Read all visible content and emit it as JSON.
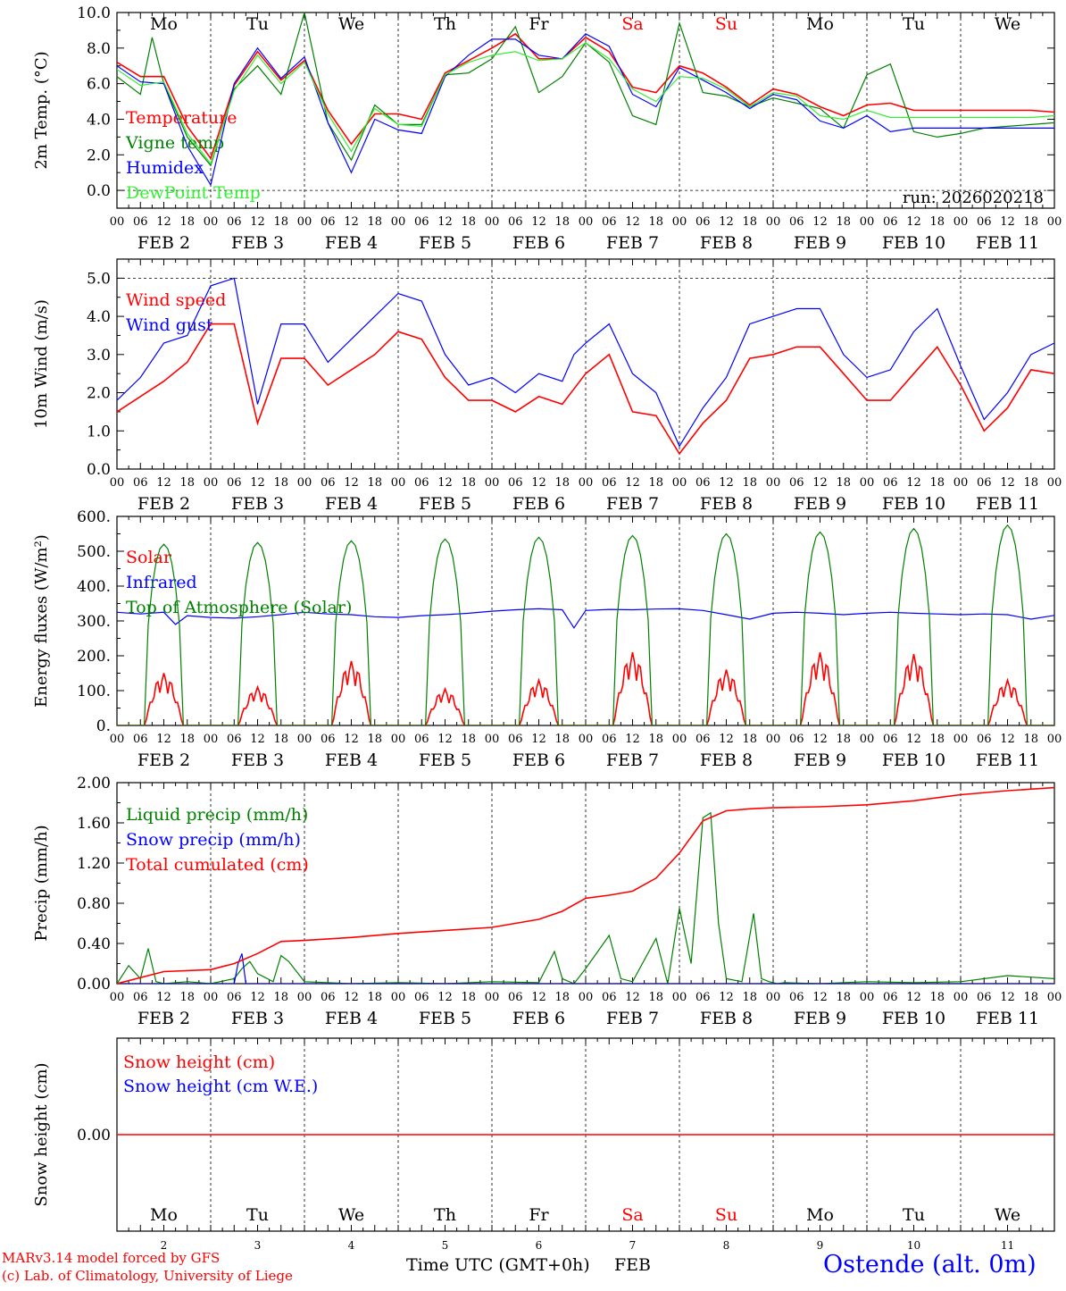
{
  "colors": {
    "red": "#ff0000",
    "green": "#008000",
    "blue": "#0000ff",
    "lightgreen": "#33ee33",
    "weekend": "#ff0000",
    "axis": "#000000",
    "grid": "#000000"
  },
  "days": [
    {
      "abbr": "Mo",
      "date": "FEB  2",
      "num": "2",
      "weekend": false
    },
    {
      "abbr": "Tu",
      "date": "FEB  3",
      "num": "3",
      "weekend": false
    },
    {
      "abbr": "We",
      "date": "FEB  4",
      "num": "4",
      "weekend": false
    },
    {
      "abbr": "Th",
      "date": "FEB  5",
      "num": "5",
      "weekend": false
    },
    {
      "abbr": "Fr",
      "date": "FEB  6",
      "num": "6",
      "weekend": false
    },
    {
      "abbr": "Sa",
      "date": "FEB  7",
      "num": "7",
      "weekend": true
    },
    {
      "abbr": "Su",
      "date": "FEB  8",
      "num": "8",
      "weekend": true
    },
    {
      "abbr": "Mo",
      "date": "FEB  9",
      "num": "9",
      "weekend": false
    },
    {
      "abbr": "Tu",
      "date": "FEB 10",
      "num": "10",
      "weekend": false
    },
    {
      "abbr": "We",
      "date": "FEB 11",
      "num": "11",
      "weekend": false
    }
  ],
  "hour_ticks": [
    "00",
    "06",
    "12",
    "18"
  ],
  "final_hour_tick": "00",
  "footer": {
    "model": "MARv3.14 model forced by GFS",
    "copyright": "(c) Lab. of Climatology, University of Liege",
    "xlabel": "Time UTC (GMT+0h)",
    "month": "FEB",
    "station": "Ostende (alt. 0m)"
  },
  "chart_data": [
    {
      "type": "line",
      "ylabel": "2m Temp. (°C)",
      "ylim": [
        -1.0,
        10.0
      ],
      "yticks": [
        "0.0",
        "2.0",
        "4.0",
        "6.0",
        "8.0",
        "10.0"
      ],
      "ytick_values": [
        0,
        2,
        4,
        6,
        8,
        10
      ],
      "dashed_y": [
        0,
        10
      ],
      "annotation": "run: 2026020218",
      "x_start": "2026-02-02 00 UTC",
      "x_end": "2026-02-12 00 UTC",
      "series": [
        {
          "name": "Temperature",
          "color": "red",
          "x": [
            0,
            6,
            12,
            18,
            24,
            30,
            36,
            42,
            48,
            54,
            60,
            66,
            72,
            78,
            84,
            90,
            96,
            102,
            108,
            114,
            120,
            126,
            132,
            138,
            144,
            150,
            156,
            162,
            168,
            174,
            180,
            186,
            192,
            198,
            204,
            210,
            216,
            222,
            228,
            234,
            240
          ],
          "y": [
            7.2,
            6.4,
            6.4,
            3.6,
            1.8,
            5.9,
            7.8,
            6.2,
            7.3,
            4.5,
            2.6,
            4.3,
            4.3,
            4.0,
            6.6,
            7.3,
            8.0,
            8.8,
            7.4,
            7.4,
            8.6,
            7.8,
            5.8,
            5.5,
            7.0,
            6.6,
            5.8,
            4.8,
            5.7,
            5.4,
            4.7,
            4.2,
            4.8,
            4.9,
            4.5,
            4.5,
            4.5,
            4.5,
            4.5,
            4.5,
            4.4
          ]
        },
        {
          "name": "Vigne temp",
          "color": "green",
          "x": [
            0,
            6,
            9,
            12,
            18,
            24,
            30,
            36,
            42,
            48,
            54,
            60,
            66,
            72,
            78,
            84,
            90,
            96,
            102,
            108,
            114,
            120,
            126,
            132,
            138,
            144,
            150,
            156,
            162,
            168,
            174,
            180,
            186,
            192,
            198,
            204,
            210,
            216,
            222,
            228,
            234,
            240
          ],
          "y": [
            6.4,
            5.4,
            8.6,
            6.0,
            3.0,
            1.4,
            5.7,
            7.0,
            5.4,
            10.0,
            3.8,
            1.7,
            4.8,
            3.7,
            3.7,
            6.5,
            6.6,
            7.4,
            9.2,
            5.5,
            6.4,
            8.3,
            7.2,
            4.2,
            3.7,
            9.4,
            5.5,
            5.3,
            4.7,
            5.2,
            4.9,
            4.6,
            3.5,
            6.5,
            7.1,
            3.3,
            3.0,
            3.2,
            3.5,
            3.6,
            3.7,
            3.8
          ]
        },
        {
          "name": "Humidex",
          "color": "blue",
          "x": [
            0,
            6,
            12,
            18,
            24,
            30,
            36,
            42,
            48,
            54,
            60,
            66,
            72,
            78,
            84,
            90,
            96,
            102,
            108,
            114,
            120,
            126,
            132,
            138,
            144,
            150,
            156,
            162,
            168,
            174,
            180,
            186,
            192,
            198,
            204,
            210,
            216,
            222,
            228,
            234,
            240
          ],
          "y": [
            7.0,
            6.1,
            6.0,
            2.5,
            0.3,
            6.0,
            8.0,
            6.3,
            7.5,
            3.8,
            1.0,
            4.0,
            3.4,
            3.2,
            6.4,
            7.6,
            8.5,
            8.5,
            7.6,
            7.4,
            8.8,
            8.1,
            5.4,
            4.7,
            6.9,
            6.2,
            5.5,
            4.6,
            5.4,
            5.1,
            3.9,
            3.5,
            4.2,
            3.3,
            3.5,
            3.5,
            3.5,
            3.5,
            3.5,
            3.5,
            3.5
          ]
        },
        {
          "name": "DewPoint Temp",
          "color": "lightgreen",
          "x": [
            0,
            6,
            12,
            18,
            24,
            30,
            36,
            42,
            48,
            54,
            60,
            66,
            72,
            78,
            84,
            90,
            96,
            102,
            108,
            114,
            120,
            126,
            132,
            138,
            144,
            150,
            156,
            162,
            168,
            174,
            180,
            186,
            192,
            198,
            204,
            210,
            216,
            222,
            228,
            234,
            240
          ],
          "y": [
            6.8,
            5.9,
            6.1,
            3.2,
            1.5,
            5.6,
            7.6,
            6.0,
            7.2,
            4.3,
            2.2,
            4.6,
            3.7,
            3.6,
            6.5,
            7.2,
            7.6,
            7.8,
            7.3,
            7.4,
            8.3,
            7.4,
            5.7,
            5.0,
            6.4,
            6.3,
            5.7,
            4.7,
            5.5,
            5.3,
            4.2,
            4.0,
            4.5,
            4.1,
            4.1,
            4.1,
            4.1,
            4.1,
            4.1,
            4.1,
            4.2
          ]
        }
      ]
    },
    {
      "type": "line",
      "ylabel": "10m Wind (m/s)",
      "ylim": [
        0.0,
        5.5
      ],
      "yticks": [
        "0.0",
        "1.0",
        "2.0",
        "3.0",
        "4.0",
        "5.0"
      ],
      "ytick_values": [
        0,
        1,
        2,
        3,
        4,
        5
      ],
      "dashed_y": [
        5
      ],
      "series": [
        {
          "name": "Wind speed",
          "color": "red",
          "x": [
            0,
            6,
            12,
            18,
            24,
            30,
            36,
            42,
            48,
            54,
            60,
            66,
            72,
            78,
            84,
            90,
            96,
            102,
            108,
            114,
            117,
            120,
            126,
            132,
            138,
            144,
            150,
            156,
            162,
            168,
            174,
            180,
            186,
            192,
            198,
            204,
            210,
            216,
            222,
            228,
            234,
            240
          ],
          "y": [
            1.5,
            1.9,
            2.3,
            2.8,
            3.8,
            3.8,
            1.2,
            2.9,
            2.9,
            2.2,
            2.6,
            3.0,
            3.6,
            3.4,
            2.4,
            1.8,
            1.8,
            1.5,
            1.9,
            1.7,
            2.1,
            2.5,
            3.0,
            1.5,
            1.4,
            0.4,
            1.2,
            1.8,
            2.9,
            3.0,
            3.2,
            3.2,
            2.5,
            1.8,
            1.8,
            2.5,
            3.2,
            2.2,
            1.0,
            1.6,
            2.6,
            2.5
          ]
        },
        {
          "name": "Wind gust",
          "color": "blue",
          "x": [
            0,
            6,
            12,
            18,
            24,
            30,
            36,
            42,
            48,
            54,
            60,
            66,
            72,
            78,
            84,
            90,
            96,
            102,
            108,
            114,
            117,
            120,
            126,
            132,
            138,
            144,
            150,
            156,
            162,
            168,
            174,
            180,
            186,
            192,
            198,
            204,
            210,
            216,
            222,
            228,
            234,
            240
          ],
          "y": [
            1.8,
            2.4,
            3.3,
            3.5,
            4.8,
            5.0,
            1.7,
            3.8,
            3.8,
            2.8,
            3.4,
            4.0,
            4.6,
            4.4,
            3.0,
            2.2,
            2.4,
            2.0,
            2.5,
            2.3,
            3.0,
            3.3,
            3.8,
            2.5,
            2.0,
            0.6,
            1.6,
            2.4,
            3.8,
            4.0,
            4.2,
            4.2,
            3.0,
            2.4,
            2.6,
            3.6,
            4.2,
            2.7,
            1.3,
            2.0,
            3.0,
            3.3
          ]
        }
      ]
    },
    {
      "type": "line",
      "ylabel": "Energy fluxes (W/m²)",
      "ylim": [
        0,
        600
      ],
      "yticks": [
        "0.",
        "100.",
        "200.",
        "300.",
        "400.",
        "500.",
        "600."
      ],
      "ytick_values": [
        0,
        100,
        200,
        300,
        400,
        500,
        600
      ],
      "dashed_y": [],
      "solar_peaks": [
        150,
        110,
        185,
        105,
        130,
        210,
        160,
        210,
        205,
        130
      ],
      "toa_peaks": [
        520,
        525,
        530,
        535,
        540,
        545,
        550,
        555,
        565,
        575
      ],
      "series": [
        {
          "name": "Solar",
          "color": "red"
        },
        {
          "name": "Infrared",
          "color": "blue",
          "x": [
            0,
            6,
            12,
            15,
            18,
            24,
            30,
            36,
            42,
            48,
            54,
            60,
            66,
            72,
            78,
            84,
            90,
            96,
            102,
            108,
            114,
            117,
            120,
            126,
            132,
            138,
            144,
            150,
            156,
            162,
            168,
            174,
            180,
            186,
            192,
            198,
            204,
            210,
            216,
            222,
            228,
            234,
            240
          ],
          "y": [
            325,
            320,
            325,
            290,
            315,
            310,
            308,
            312,
            318,
            325,
            320,
            318,
            312,
            310,
            315,
            318,
            322,
            328,
            332,
            335,
            332,
            280,
            330,
            333,
            332,
            334,
            335,
            330,
            318,
            305,
            322,
            325,
            322,
            318,
            322,
            325,
            322,
            320,
            318,
            320,
            318,
            305,
            316
          ]
        },
        {
          "name": "Top of Atmosphere (Solar)",
          "color": "green"
        }
      ]
    },
    {
      "type": "line",
      "ylabel": "Precip (mm/h)",
      "ylim": [
        0.0,
        2.0
      ],
      "yticks": [
        "0.00",
        "0.40",
        "0.80",
        "1.20",
        "1.60",
        "2.00"
      ],
      "ytick_values": [
        0,
        0.4,
        0.8,
        1.2,
        1.6,
        2.0
      ],
      "dashed_y": [
        2.0
      ],
      "series": [
        {
          "name": "Liquid precip (mm/h)",
          "color": "green",
          "x": [
            0,
            3,
            6,
            8,
            10,
            12,
            18,
            24,
            30,
            32,
            34,
            36,
            40,
            42,
            44,
            48,
            60,
            72,
            84,
            96,
            108,
            112,
            114,
            117,
            120,
            126,
            129,
            132,
            138,
            141,
            144,
            147,
            150,
            152,
            154,
            156,
            160,
            163,
            165,
            167,
            169,
            171,
            180,
            192,
            204,
            216,
            228,
            240
          ],
          "y": [
            0,
            0.18,
            0.05,
            0.35,
            0.02,
            0,
            0.02,
            0,
            0.05,
            0.15,
            0.22,
            0.1,
            0.02,
            0.28,
            0.22,
            0.02,
            0,
            0.01,
            0,
            0.02,
            0.01,
            0.32,
            0.05,
            0,
            0.15,
            0.48,
            0.05,
            0.02,
            0.45,
            0,
            0.75,
            0.2,
            1.65,
            1.7,
            0.6,
            0.05,
            0.02,
            0.7,
            0.05,
            0.02,
            0,
            0.01,
            0,
            0.02,
            0.01,
            0.02,
            0.08,
            0.05
          ]
        },
        {
          "name": "Snow precip (mm/h)",
          "color": "blue",
          "x": [
            0,
            30,
            31,
            32,
            33,
            240
          ],
          "y": [
            0,
            0,
            0.2,
            0.3,
            0,
            0
          ]
        },
        {
          "name": "Total cumulated (cm)",
          "color": "red",
          "x": [
            0,
            12,
            24,
            30,
            36,
            42,
            48,
            60,
            72,
            84,
            96,
            108,
            114,
            120,
            126,
            132,
            138,
            144,
            150,
            156,
            162,
            168,
            180,
            192,
            204,
            216,
            228,
            240
          ],
          "y": [
            0,
            0.12,
            0.14,
            0.2,
            0.3,
            0.42,
            0.43,
            0.46,
            0.5,
            0.53,
            0.56,
            0.64,
            0.72,
            0.85,
            0.88,
            0.92,
            1.05,
            1.3,
            1.62,
            1.72,
            1.74,
            1.75,
            1.76,
            1.78,
            1.82,
            1.88,
            1.92,
            1.95
          ]
        }
      ]
    },
    {
      "type": "line",
      "ylabel": "Snow height (cm)",
      "ylim": [
        -0.02,
        0.02
      ],
      "yticks": [
        "0.00"
      ],
      "ytick_values": [
        0
      ],
      "dashed_y": [],
      "series": [
        {
          "name": "Snow height (cm)",
          "color": "red",
          "x": [
            0,
            240
          ],
          "y": [
            0,
            0
          ]
        },
        {
          "name": "Snow height (cm W.E.)",
          "color": "blue"
        }
      ]
    }
  ]
}
